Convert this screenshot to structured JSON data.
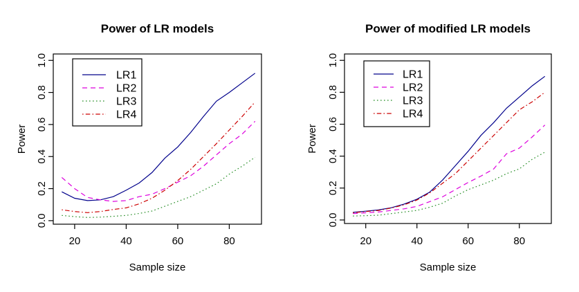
{
  "figure": {
    "background": "#ffffff",
    "text_color": "#000000",
    "axis_color": "#000000"
  },
  "chart_data": [
    {
      "type": "line",
      "title": "Power of LR models",
      "xlabel": "Sample size",
      "ylabel": "Power",
      "grid": false,
      "legend_position": "top-left",
      "xlim": [
        11.7,
        92.5
      ],
      "ylim": [
        -0.022,
        1.04
      ],
      "xticks": [
        20,
        40,
        60,
        80
      ],
      "xtick_labels": [
        "20",
        "40",
        "60",
        "80"
      ],
      "ytick_values": [
        0.0,
        0.2,
        0.4,
        0.6,
        0.8,
        1.0
      ],
      "ytick_labels": [
        "0.0",
        "0.2",
        "0.4",
        "0.6",
        "0.8",
        "1.0"
      ],
      "x": [
        15,
        20,
        25,
        30,
        35,
        40,
        45,
        50,
        55,
        60,
        65,
        70,
        75,
        80,
        85,
        90
      ],
      "series": [
        {
          "name": "LR1",
          "color": "#00008B",
          "dash": "solid",
          "values": [
            0.18,
            0.14,
            0.125,
            0.13,
            0.15,
            0.19,
            0.235,
            0.3,
            0.39,
            0.46,
            0.55,
            0.65,
            0.745,
            0.8,
            0.86,
            0.92
          ]
        },
        {
          "name": "LR2",
          "color": "#DD00DD",
          "dash": "dashed",
          "values": [
            0.27,
            0.2,
            0.145,
            0.13,
            0.12,
            0.125,
            0.15,
            0.165,
            0.2,
            0.24,
            0.28,
            0.34,
            0.41,
            0.48,
            0.54,
            0.62
          ]
        },
        {
          "name": "LR3",
          "color": "#228B22",
          "dash": "dotted",
          "values": [
            0.033,
            0.025,
            0.02,
            0.022,
            0.027,
            0.033,
            0.045,
            0.06,
            0.09,
            0.12,
            0.15,
            0.19,
            0.23,
            0.29,
            0.34,
            0.395
          ]
        },
        {
          "name": "LR4",
          "color": "#CC0000",
          "dash": "dashdot",
          "values": [
            0.068,
            0.057,
            0.05,
            0.057,
            0.07,
            0.08,
            0.105,
            0.14,
            0.19,
            0.25,
            0.32,
            0.4,
            0.48,
            0.565,
            0.65,
            0.74
          ]
        }
      ]
    },
    {
      "type": "line",
      "title": "Power of modified LR models",
      "xlabel": "Sample size",
      "ylabel": "Power",
      "grid": false,
      "legend_position": "top-left",
      "xlim": [
        11.7,
        92.5
      ],
      "ylim": [
        -0.022,
        1.04
      ],
      "xticks": [
        20,
        40,
        60,
        80
      ],
      "xtick_labels": [
        "20",
        "40",
        "60",
        "80"
      ],
      "ytick_values": [
        0.0,
        0.2,
        0.4,
        0.6,
        0.8,
        1.0
      ],
      "ytick_labels": [
        "0.0",
        "0.2",
        "0.4",
        "0.6",
        "0.8",
        "1.0"
      ],
      "x": [
        15,
        20,
        25,
        30,
        35,
        40,
        45,
        50,
        55,
        60,
        65,
        70,
        75,
        80,
        85,
        90
      ],
      "series": [
        {
          "name": "LR1",
          "color": "#00008B",
          "dash": "solid",
          "values": [
            0.048,
            0.055,
            0.063,
            0.077,
            0.1,
            0.13,
            0.175,
            0.25,
            0.34,
            0.43,
            0.53,
            0.61,
            0.7,
            0.77,
            0.84,
            0.9
          ]
        },
        {
          "name": "LR2",
          "color": "#DD00DD",
          "dash": "dashed",
          "values": [
            0.04,
            0.045,
            0.05,
            0.06,
            0.07,
            0.085,
            0.115,
            0.145,
            0.19,
            0.235,
            0.275,
            0.32,
            0.415,
            0.45,
            0.52,
            0.595
          ]
        },
        {
          "name": "LR3",
          "color": "#228B22",
          "dash": "dotted",
          "values": [
            0.025,
            0.027,
            0.03,
            0.04,
            0.05,
            0.06,
            0.08,
            0.105,
            0.15,
            0.19,
            0.22,
            0.25,
            0.29,
            0.32,
            0.38,
            0.425
          ]
        },
        {
          "name": "LR4",
          "color": "#CC0000",
          "dash": "dashdot",
          "values": [
            0.045,
            0.053,
            0.06,
            0.075,
            0.095,
            0.125,
            0.17,
            0.23,
            0.29,
            0.37,
            0.45,
            0.53,
            0.61,
            0.69,
            0.74,
            0.8
          ]
        }
      ]
    }
  ]
}
